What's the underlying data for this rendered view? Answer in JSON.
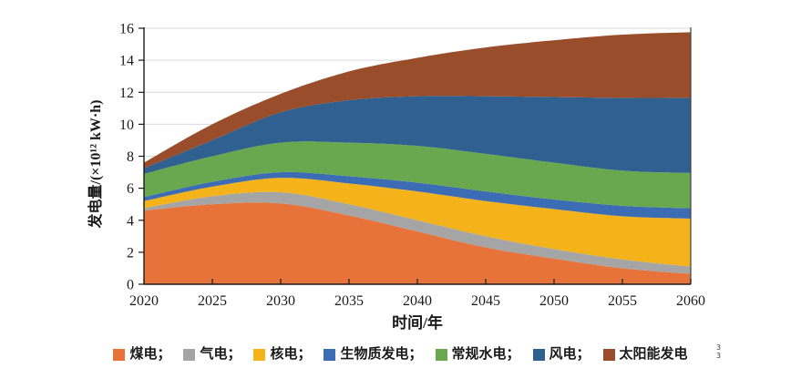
{
  "figure": {
    "watermark": "3\n3"
  },
  "chart_data": {
    "type": "area",
    "stacked": true,
    "title": "",
    "xlabel": "时间/年",
    "ylabel": "发电量/(×10¹² kW·h)",
    "x": [
      2020,
      2025,
      2030,
      2035,
      2040,
      2045,
      2050,
      2055,
      2060
    ],
    "x_tick_labels": [
      "2020",
      "2025",
      "2030",
      "2035",
      "2040",
      "2045",
      "2050",
      "2055",
      "2060"
    ],
    "y_ticks": [
      0,
      2,
      4,
      6,
      8,
      10,
      12,
      14,
      16
    ],
    "ylim": [
      0,
      16
    ],
    "grid": "horizontal",
    "gridline_color": "#d9d9d9",
    "axis_color": "#1a1a1a",
    "legend_position": "bottom",
    "series": [
      {
        "name": "煤电",
        "legend_label": "煤电；",
        "color": "#e8733a",
        "values": [
          4.6,
          5.0,
          5.05,
          4.3,
          3.3,
          2.3,
          1.6,
          1.0,
          0.65
        ]
      },
      {
        "name": "气电",
        "legend_label": "气电；",
        "color": "#a5a5a5",
        "values": [
          0.15,
          0.5,
          0.7,
          0.7,
          0.7,
          0.7,
          0.6,
          0.55,
          0.45
        ]
      },
      {
        "name": "核电",
        "legend_label": "核电；",
        "color": "#f5b31b",
        "values": [
          0.45,
          0.6,
          0.9,
          1.3,
          1.8,
          2.2,
          2.5,
          2.7,
          3.0
        ]
      },
      {
        "name": "生物质发电",
        "legend_label": "生物质发电；",
        "color": "#3b6cb4",
        "values": [
          0.25,
          0.3,
          0.35,
          0.45,
          0.55,
          0.6,
          0.6,
          0.65,
          0.65
        ]
      },
      {
        "name": "常规水电",
        "legend_label": "常规水电；",
        "color": "#69a84f",
        "values": [
          1.45,
          1.6,
          1.85,
          2.1,
          2.3,
          2.35,
          2.3,
          2.2,
          2.2
        ]
      },
      {
        "name": "风电",
        "legend_label": "风电；",
        "color": "#2f608f",
        "values": [
          0.35,
          1.0,
          1.9,
          2.65,
          3.1,
          3.6,
          4.1,
          4.55,
          4.7
        ]
      },
      {
        "name": "太阳能发电",
        "legend_label": "太阳能发电",
        "color": "#9a4d2b",
        "values": [
          0.35,
          1.0,
          1.15,
          1.8,
          2.4,
          3.05,
          3.55,
          3.95,
          4.1
        ]
      }
    ],
    "totals": [
      7.6,
      10.0,
      11.9,
      13.3,
      14.15,
      14.8,
      15.25,
      15.6,
      15.75
    ]
  }
}
